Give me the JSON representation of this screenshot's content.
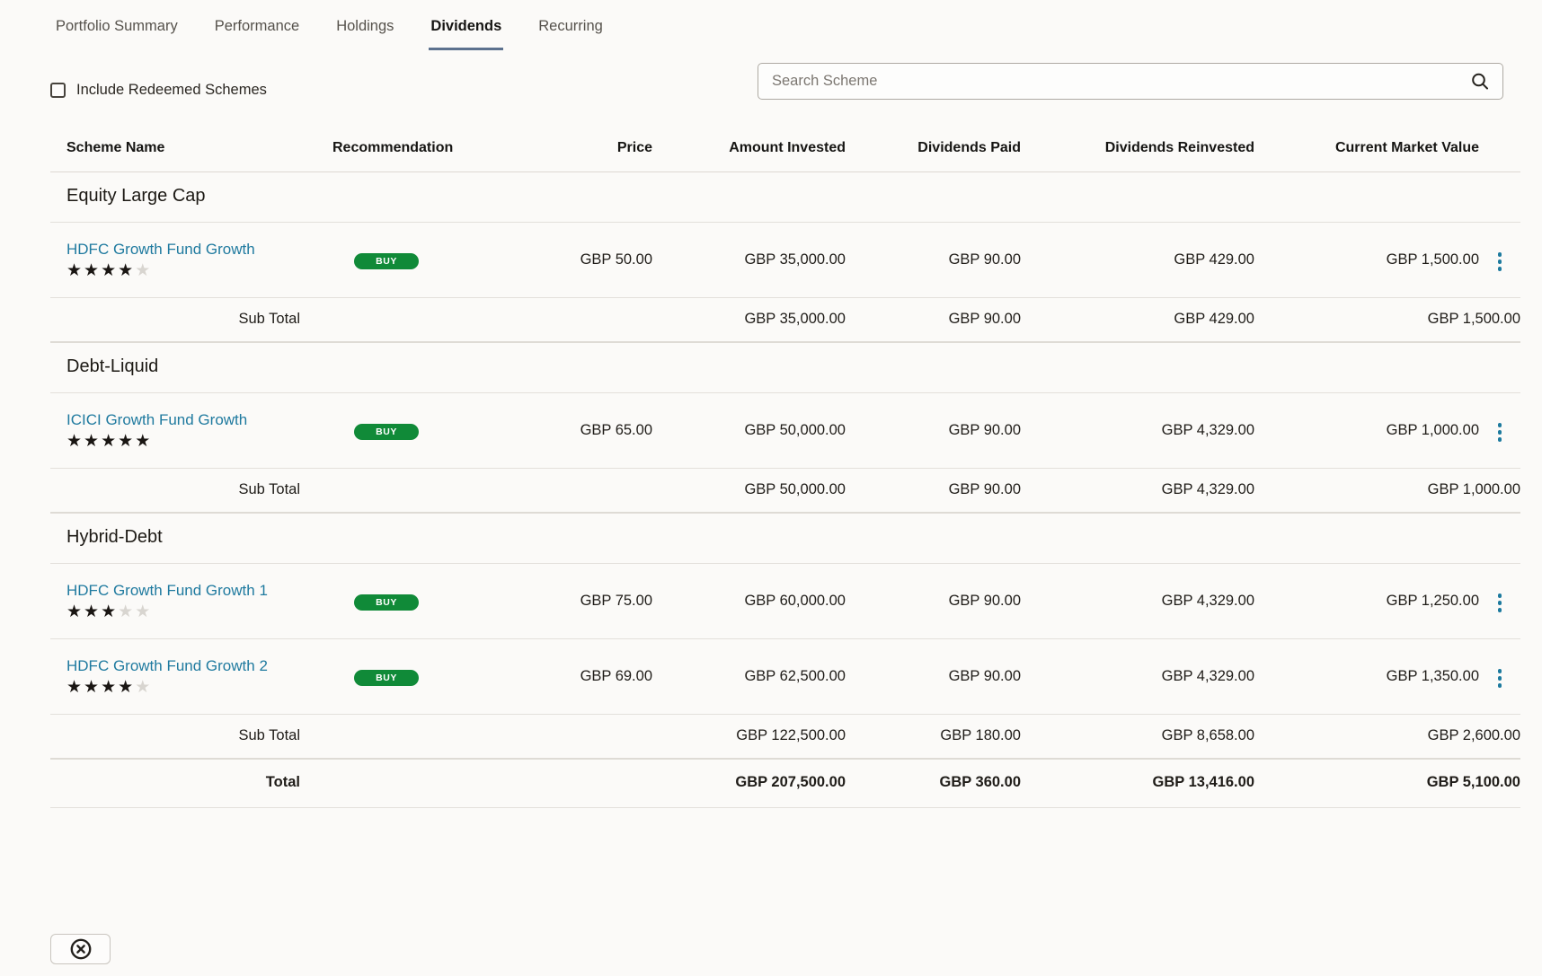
{
  "tabs": [
    {
      "label": "Portfolio Summary",
      "active": false
    },
    {
      "label": "Performance",
      "active": false
    },
    {
      "label": "Holdings",
      "active": false
    },
    {
      "label": "Dividends",
      "active": true
    },
    {
      "label": "Recurring",
      "active": false
    }
  ],
  "controls": {
    "include_redeemed_label": "Include Redeemed Schemes",
    "checkbox_checked": false,
    "search_placeholder": "Search Scheme",
    "search_value": ""
  },
  "icons": {
    "search": "magnifier-icon",
    "row_menu": "kebab-vertical-dots-icon",
    "close": "circled-x-icon"
  },
  "colors": {
    "link_accent": "#1f7a9f",
    "buy_green": "#108a38",
    "tab_underline": "#5c718e",
    "star_filled": "#1a1613",
    "star_empty": "#d8d5d0"
  },
  "table": {
    "rating_scale": 5,
    "columns": [
      "Scheme Name",
      "Recommendation",
      "Price",
      "Amount Invested",
      "Dividends Paid",
      "Dividends Reinvested",
      "Current Market Value"
    ],
    "groups": [
      {
        "name": "Equity Large Cap",
        "rows": [
          {
            "scheme": "HDFC Growth Fund Growth",
            "rating": 4,
            "recommendation": "BUY",
            "price": "GBP 50.00",
            "amount_invested": "GBP 35,000.00",
            "dividends_paid": "GBP 90.00",
            "dividends_reinvested": "GBP 429.00",
            "market_value": "GBP 1,500.00"
          }
        ],
        "subtotal": {
          "label": "Sub Total",
          "amount_invested": "GBP 35,000.00",
          "dividends_paid": "GBP 90.00",
          "dividends_reinvested": "GBP 429.00",
          "market_value": "GBP 1,500.00"
        }
      },
      {
        "name": "Debt-Liquid",
        "rows": [
          {
            "scheme": "ICICI Growth Fund Growth",
            "rating": 5,
            "recommendation": "BUY",
            "price": "GBP 65.00",
            "amount_invested": "GBP 50,000.00",
            "dividends_paid": "GBP 90.00",
            "dividends_reinvested": "GBP 4,329.00",
            "market_value": "GBP 1,000.00"
          }
        ],
        "subtotal": {
          "label": "Sub Total",
          "amount_invested": "GBP 50,000.00",
          "dividends_paid": "GBP 90.00",
          "dividends_reinvested": "GBP 4,329.00",
          "market_value": "GBP 1,000.00"
        }
      },
      {
        "name": "Hybrid-Debt",
        "rows": [
          {
            "scheme": "HDFC Growth Fund Growth 1",
            "rating": 3,
            "recommendation": "BUY",
            "price": "GBP 75.00",
            "amount_invested": "GBP 60,000.00",
            "dividends_paid": "GBP 90.00",
            "dividends_reinvested": "GBP 4,329.00",
            "market_value": "GBP 1,250.00"
          },
          {
            "scheme": "HDFC Growth Fund Growth 2",
            "rating": 4,
            "recommendation": "BUY",
            "price": "GBP 69.00",
            "amount_invested": "GBP 62,500.00",
            "dividends_paid": "GBP 90.00",
            "dividends_reinvested": "GBP 4,329.00",
            "market_value": "GBP 1,350.00"
          }
        ],
        "subtotal": {
          "label": "Sub Total",
          "amount_invested": "GBP 122,500.00",
          "dividends_paid": "GBP 180.00",
          "dividends_reinvested": "GBP 8,658.00",
          "market_value": "GBP 2,600.00"
        }
      }
    ],
    "total": {
      "label": "Total",
      "amount_invested": "GBP 207,500.00",
      "dividends_paid": "GBP 360.00",
      "dividends_reinvested": "GBP 13,416.00",
      "market_value": "GBP 5,100.00"
    }
  }
}
